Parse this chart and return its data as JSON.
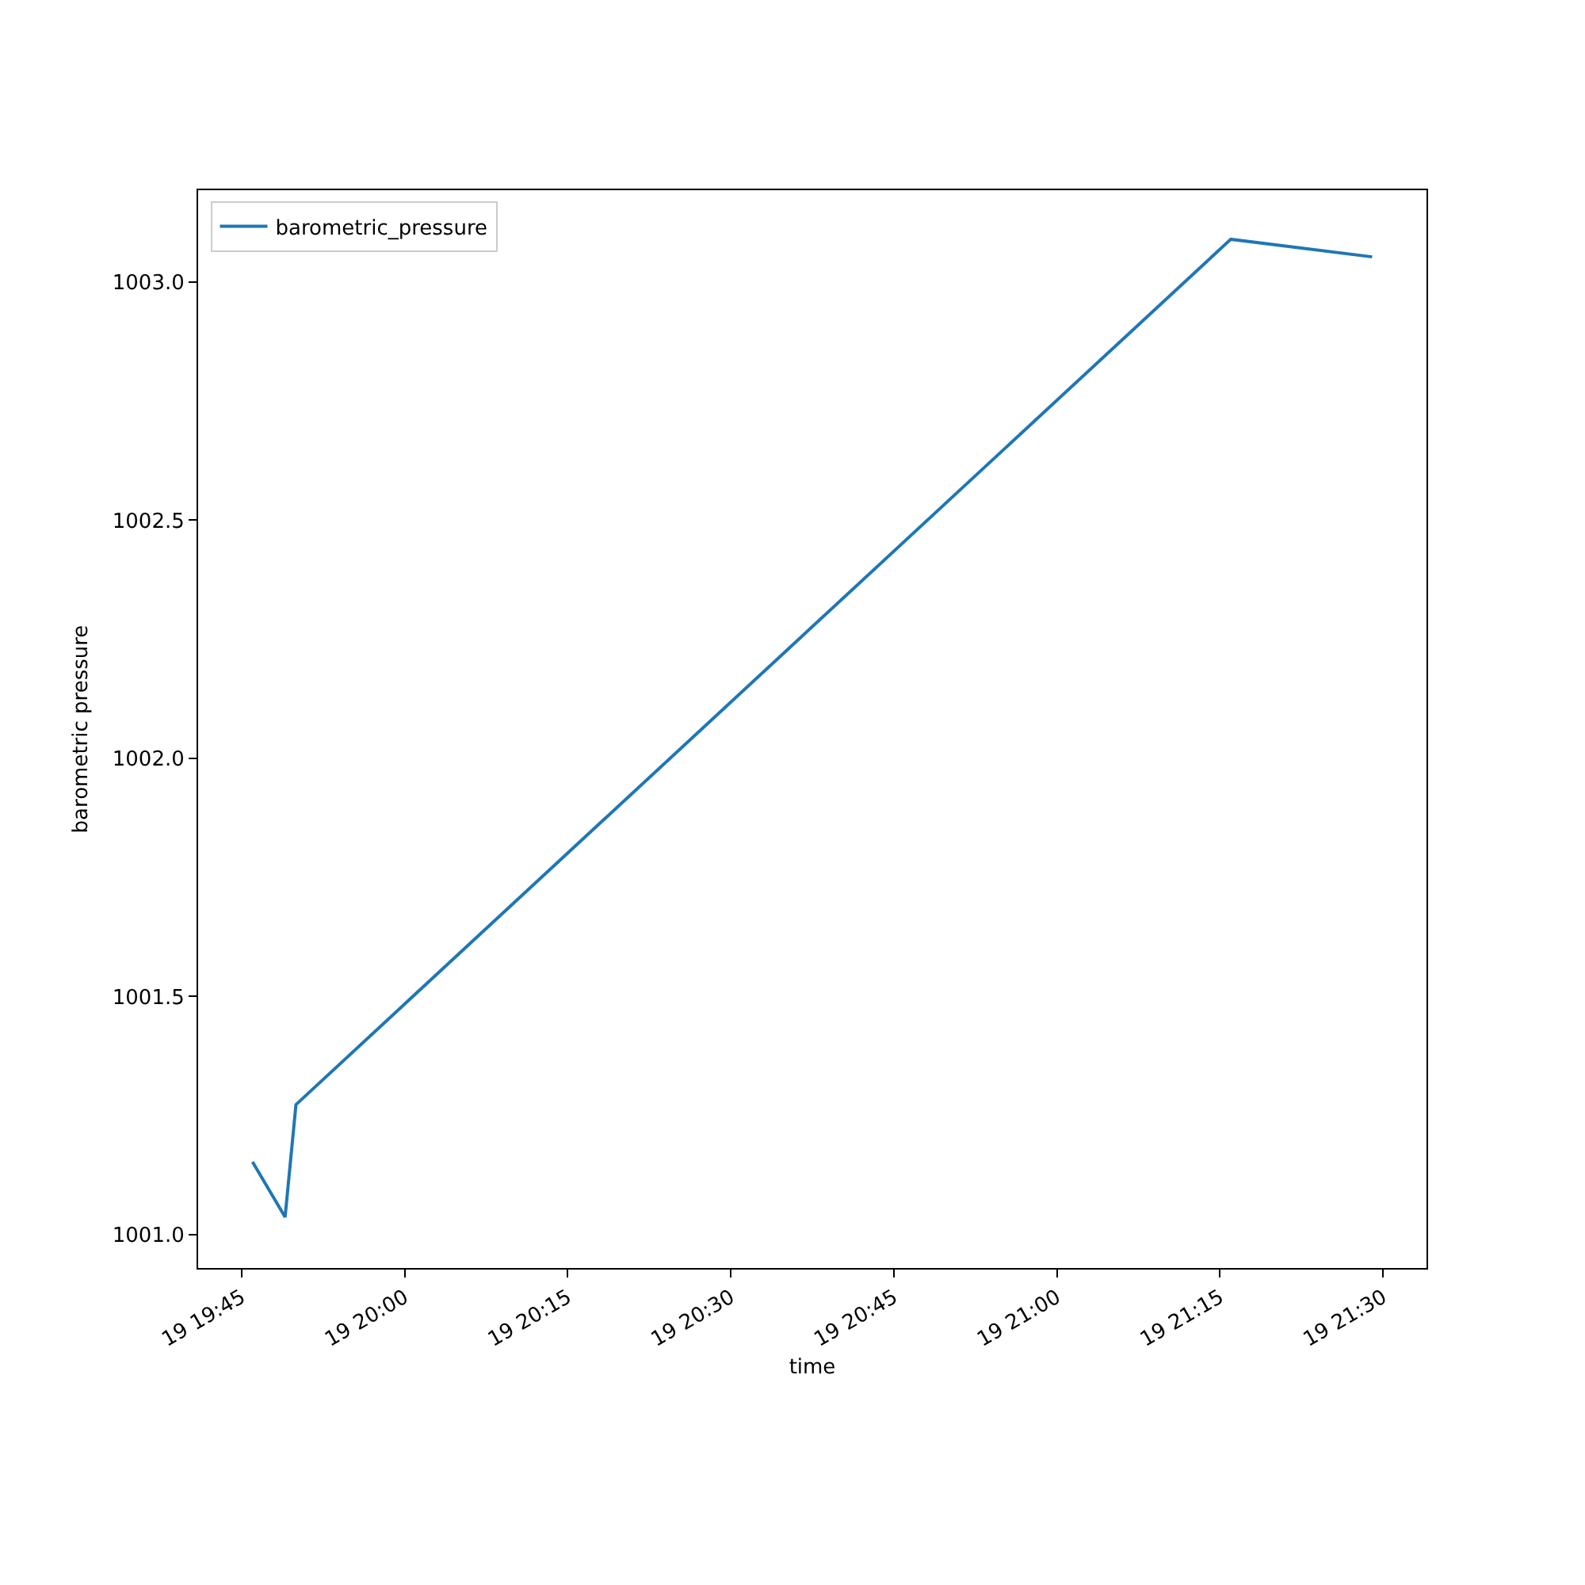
{
  "chart_data": {
    "type": "line",
    "xlabel": "time",
    "ylabel": "barometric pressure",
    "x": [
      "--01-19T19:46",
      "--01-19T19:49",
      "--01-19T19:50",
      "--01-19T21:16",
      "--01-19T21:29"
    ],
    "series": [
      {
        "name": "barometric_pressure",
        "color": "#1f77b4",
        "values": [
          1001.153,
          1001.037,
          1001.273,
          1003.09,
          1003.053
        ]
      }
    ],
    "xlim": [
      "--01-19T19:41",
      "--01-19T21:34"
    ],
    "xticks": [
      {
        "value": "--01-19T19:45",
        "label": "19 19:45"
      },
      {
        "value": "--01-19T20:00",
        "label": "19 20:00"
      },
      {
        "value": "--01-19T20:15",
        "label": "19 20:15"
      },
      {
        "value": "--01-19T20:30",
        "label": "19 20:30"
      },
      {
        "value": "--01-19T20:45",
        "label": "19 20:45"
      },
      {
        "value": "--01-19T21:00",
        "label": "19 21:00"
      },
      {
        "value": "--01-19T21:15",
        "label": "19 21:15"
      },
      {
        "value": "--01-19T21:30",
        "label": "19 21:30"
      }
    ],
    "ylim": [
      1000.93,
      1003.193
    ],
    "yticks": [
      {
        "value": 1001,
        "label": "1001.0"
      },
      {
        "value": 1001.5,
        "label": "1001.5"
      },
      {
        "value": 1002,
        "label": "1002.0"
      },
      {
        "value": 1002.5,
        "label": "1002.5"
      },
      {
        "value": 1003,
        "label": "1003.0"
      }
    ],
    "legend": "top left",
    "grid": false
  }
}
